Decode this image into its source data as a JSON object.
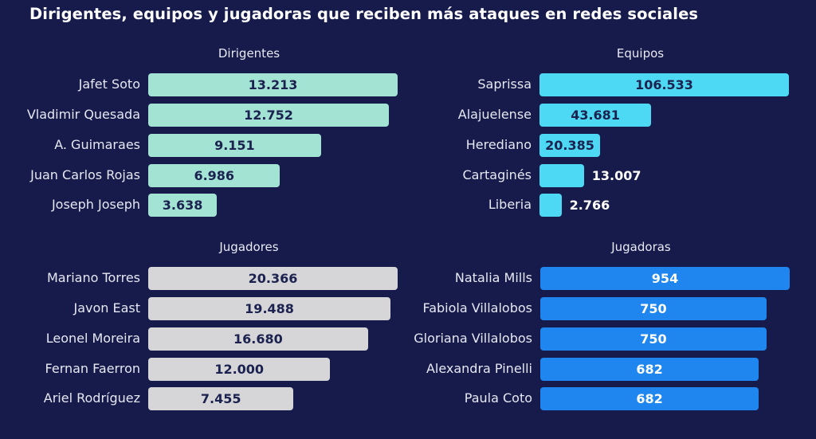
{
  "title": "Dirigentes, equipos y jugadoras que reciben más ataques en redes sociales",
  "chart_data": [
    {
      "type": "bar",
      "orientation": "horizontal",
      "title": "Dirigentes",
      "color": "#a3e3d3",
      "value_color": "#1c2250",
      "categories": [
        "Jafet Soto",
        "Vladimir Quesada",
        "A. Guimaraes",
        "Juan Carlos Rojas",
        "Joseph Joseph"
      ],
      "values": [
        13213,
        12752,
        9151,
        6986,
        3638
      ],
      "value_labels": [
        "13.213",
        "12.752",
        "9.151",
        "6.986",
        "3.638"
      ]
    },
    {
      "type": "bar",
      "orientation": "horizontal",
      "title": "Equipos",
      "color": "#4dd9f3",
      "value_color": "#1c2250",
      "categories": [
        "Saprissa",
        "Alajuelense",
        "Herediano",
        "Cartaginés",
        "Liberia"
      ],
      "values": [
        106533,
        43681,
        20385,
        13007,
        2766
      ],
      "value_labels": [
        "106.533",
        "43.681",
        "20.385",
        "13.007",
        "2.766"
      ]
    },
    {
      "type": "bar",
      "orientation": "horizontal",
      "title": "Jugadores",
      "color": "#d6d6d8",
      "value_color": "#1c2250",
      "categories": [
        "Mariano Torres",
        "Javon East",
        "Leonel Moreira",
        "Fernan Faerron",
        "Ariel Rodríguez"
      ],
      "values": [
        20366,
        19488,
        16680,
        12000,
        7455
      ],
      "value_labels": [
        "20.366",
        "19.488",
        "16.680",
        "12.000",
        "7.455"
      ]
    },
    {
      "type": "bar",
      "orientation": "horizontal",
      "title": "Jugadoras",
      "color": "#1e86ee",
      "value_color": "#ffffff",
      "categories": [
        "Natalia Mills",
        "Fabiola Villalobos",
        "Gloriana Villalobos",
        "Alexandra Pinelli",
        "Paula Coto"
      ],
      "values": [
        954,
        750,
        750,
        682,
        682
      ],
      "value_labels": [
        "954",
        "750",
        "750",
        "682",
        "682"
      ]
    }
  ]
}
